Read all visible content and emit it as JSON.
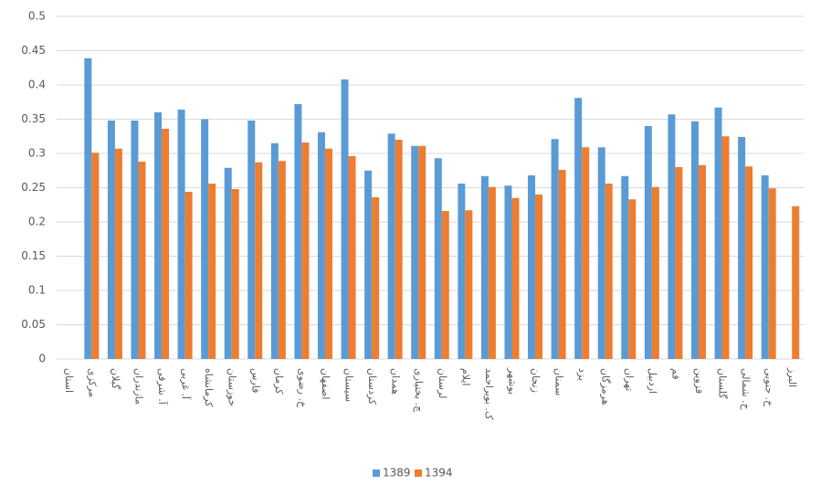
{
  "chart_data": {
    "type": "bar",
    "categories": [
      "استان",
      "مرکزی",
      "گیلان",
      "مازندران",
      "آ. شرقی",
      "آ. غربی",
      "کرمانشاه",
      "خوزستان",
      "فارس",
      "کرمان",
      "خ. رضوی",
      "اصفهان",
      "سیستان",
      "کردستان",
      "همدان",
      "چ. بختیاری",
      "لرستان",
      "ایلام",
      "ک. بویراحمد",
      "بوشهر",
      "زنجان",
      "سمنان",
      "یزد",
      "هرمزگان",
      "تهران",
      "اردبیل",
      "قم",
      "قزوین",
      "گلستان",
      "خ. شمالی",
      "خ. جنوبی",
      "البرز"
    ],
    "series": [
      {
        "name": "1389",
        "color": "#5b9bd5",
        "values": [
          null,
          0.439,
          0.348,
          0.348,
          0.36,
          0.364,
          0.35,
          0.279,
          0.348,
          0.315,
          0.372,
          0.331,
          0.408,
          0.275,
          0.329,
          0.311,
          0.293,
          0.256,
          0.267,
          0.253,
          0.268,
          0.321,
          0.381,
          0.309,
          0.267,
          0.34,
          0.357,
          0.347,
          0.367,
          0.324,
          0.268,
          null
        ]
      },
      {
        "name": "1394",
        "color": "#ed7d31",
        "values": [
          null,
          0.301,
          0.307,
          0.288,
          0.336,
          0.244,
          0.256,
          0.248,
          0.287,
          0.289,
          0.316,
          0.307,
          0.296,
          0.236,
          0.32,
          0.311,
          0.216,
          0.217,
          0.251,
          0.235,
          0.24,
          0.276,
          0.309,
          0.256,
          0.233,
          0.251,
          0.28,
          0.283,
          0.325,
          0.281,
          0.249,
          0.223
        ]
      }
    ],
    "ylim": [
      0,
      0.5
    ],
    "yticks": [
      0,
      0.05,
      0.1,
      0.15,
      0.2,
      0.25,
      0.3,
      0.35,
      0.4,
      0.45,
      0.5
    ],
    "grid": true,
    "legend": "bottom"
  }
}
